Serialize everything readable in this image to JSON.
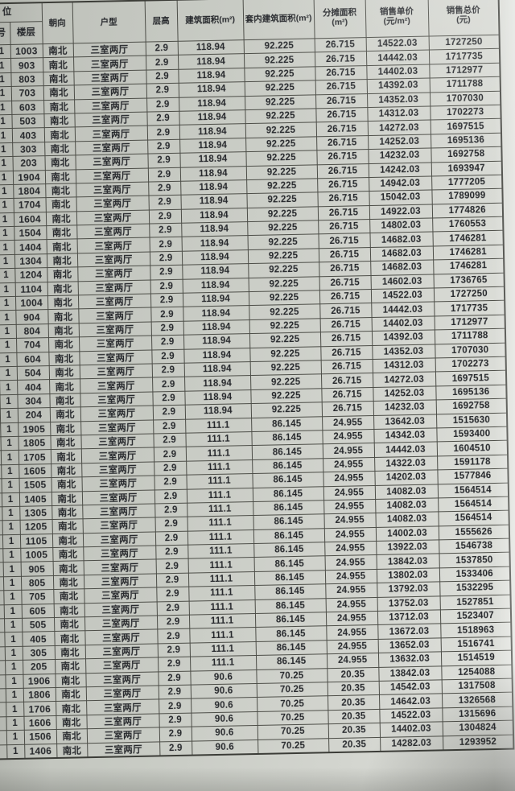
{
  "table": {
    "header": {
      "position_group": "位",
      "building_no": "",
      "unit_no": "号",
      "floor": "楼层",
      "orientation": "朝向",
      "unit_type": "户型",
      "floor_height": "层高",
      "build_area": "建筑面积(m²)",
      "inner_area": "套内建筑面积(m²)",
      "shared_area_l1": "分摊面积",
      "shared_area_l2": "(m²)",
      "unit_price_l1": "销售单价",
      "unit_price_l2": "(元/m²)",
      "total_price_l1": "销售总价",
      "total_price_l2": "(元)"
    },
    "col_keys": [
      "building",
      "unit",
      "floor",
      "orientation",
      "unit-type",
      "floor-height",
      "build-area",
      "inner-area",
      "shared-area",
      "unit-price",
      "total-price"
    ],
    "rows": [
      [
        "1",
        "1",
        "1003",
        "南北",
        "三室两厅",
        "2.9",
        "118.94",
        "92.225",
        "26.715",
        "14522.03",
        "1727250"
      ],
      [
        "1",
        "1",
        "903",
        "南北",
        "三室两厅",
        "2.9",
        "118.94",
        "92.225",
        "26.715",
        "14442.03",
        "1717735"
      ],
      [
        "1",
        "1",
        "803",
        "南北",
        "三室两厅",
        "2.9",
        "118.94",
        "92.225",
        "26.715",
        "14402.03",
        "1712977"
      ],
      [
        "1",
        "1",
        "703",
        "南北",
        "三室两厅",
        "2.9",
        "118.94",
        "92.225",
        "26.715",
        "14392.03",
        "1711788"
      ],
      [
        "1",
        "1",
        "603",
        "南北",
        "三室两厅",
        "2.9",
        "118.94",
        "92.225",
        "26.715",
        "14352.03",
        "1707030"
      ],
      [
        "1",
        "1",
        "503",
        "南北",
        "三室两厅",
        "2.9",
        "118.94",
        "92.225",
        "26.715",
        "14312.03",
        "1702273"
      ],
      [
        "1",
        "1",
        "403",
        "南北",
        "三室两厅",
        "2.9",
        "118.94",
        "92.225",
        "26.715",
        "14272.03",
        "1697515"
      ],
      [
        "1",
        "1",
        "303",
        "南北",
        "三室两厅",
        "2.9",
        "118.94",
        "92.225",
        "26.715",
        "14252.03",
        "1695136"
      ],
      [
        "1",
        "1",
        "203",
        "南北",
        "三室两厅",
        "2.9",
        "118.94",
        "92.225",
        "26.715",
        "14232.03",
        "1692758"
      ],
      [
        "1",
        "1",
        "1904",
        "南北",
        "三室两厅",
        "2.9",
        "118.94",
        "92.225",
        "26.715",
        "14242.03",
        "1693947"
      ],
      [
        "1",
        "1",
        "1804",
        "南北",
        "三室两厅",
        "2.9",
        "118.94",
        "92.225",
        "26.715",
        "14942.03",
        "1777205"
      ],
      [
        "1",
        "1",
        "1704",
        "南北",
        "三室两厅",
        "2.9",
        "118.94",
        "92.225",
        "26.715",
        "15042.03",
        "1789099"
      ],
      [
        "1",
        "1",
        "1604",
        "南北",
        "三室两厅",
        "2.9",
        "118.94",
        "92.225",
        "26.715",
        "14922.03",
        "1774826"
      ],
      [
        "1",
        "1",
        "1504",
        "南北",
        "三室两厅",
        "2.9",
        "118.94",
        "92.225",
        "26.715",
        "14802.03",
        "1760553"
      ],
      [
        "1",
        "1",
        "1404",
        "南北",
        "三室两厅",
        "2.9",
        "118.94",
        "92.225",
        "26.715",
        "14682.03",
        "1746281"
      ],
      [
        "1",
        "1",
        "1304",
        "南北",
        "三室两厅",
        "2.9",
        "118.94",
        "92.225",
        "26.715",
        "14682.03",
        "1746281"
      ],
      [
        "1",
        "1",
        "1204",
        "南北",
        "三室两厅",
        "2.9",
        "118.94",
        "92.225",
        "26.715",
        "14682.03",
        "1746281"
      ],
      [
        "1",
        "1",
        "1104",
        "南北",
        "三室两厅",
        "2.9",
        "118.94",
        "92.225",
        "26.715",
        "14602.03",
        "1736765"
      ],
      [
        "1",
        "1",
        "1004",
        "南北",
        "三室两厅",
        "2.9",
        "118.94",
        "92.225",
        "26.715",
        "14522.03",
        "1727250"
      ],
      [
        "1",
        "1",
        "904",
        "南北",
        "三室两厅",
        "2.9",
        "118.94",
        "92.225",
        "26.715",
        "14442.03",
        "1717735"
      ],
      [
        "1",
        "1",
        "804",
        "南北",
        "三室两厅",
        "2.9",
        "118.94",
        "92.225",
        "26.715",
        "14402.03",
        "1712977"
      ],
      [
        "1",
        "1",
        "704",
        "南北",
        "三室两厅",
        "2.9",
        "118.94",
        "92.225",
        "26.715",
        "14392.03",
        "1711788"
      ],
      [
        "1",
        "1",
        "604",
        "南北",
        "三室两厅",
        "2.9",
        "118.94",
        "92.225",
        "26.715",
        "14352.03",
        "1707030"
      ],
      [
        "1",
        "1",
        "504",
        "南北",
        "三室两厅",
        "2.9",
        "118.94",
        "92.225",
        "26.715",
        "14312.03",
        "1702273"
      ],
      [
        "1",
        "1",
        "404",
        "南北",
        "三室两厅",
        "2.9",
        "118.94",
        "92.225",
        "26.715",
        "14272.03",
        "1697515"
      ],
      [
        "1",
        "1",
        "304",
        "南北",
        "三室两厅",
        "2.9",
        "118.94",
        "92.225",
        "26.715",
        "14252.03",
        "1695136"
      ],
      [
        "1",
        "1",
        "204",
        "南北",
        "三室两厅",
        "2.9",
        "118.94",
        "92.225",
        "26.715",
        "14232.03",
        "1692758"
      ],
      [
        "1",
        "1",
        "1905",
        "南北",
        "三室两厅",
        "2.9",
        "111.1",
        "86.145",
        "24.955",
        "13642.03",
        "1515630"
      ],
      [
        "1",
        "1",
        "1805",
        "南北",
        "三室两厅",
        "2.9",
        "111.1",
        "86.145",
        "24.955",
        "14342.03",
        "1593400"
      ],
      [
        "1",
        "1",
        "1705",
        "南北",
        "三室两厅",
        "2.9",
        "111.1",
        "86.145",
        "24.955",
        "14442.03",
        "1604510"
      ],
      [
        "1",
        "1",
        "1605",
        "南北",
        "三室两厅",
        "2.9",
        "111.1",
        "86.145",
        "24.955",
        "14322.03",
        "1591178"
      ],
      [
        "1",
        "1",
        "1505",
        "南北",
        "三室两厅",
        "2.9",
        "111.1",
        "86.145",
        "24.955",
        "14202.03",
        "1577846"
      ],
      [
        "1",
        "1",
        "1405",
        "南北",
        "三室两厅",
        "2.9",
        "111.1",
        "86.145",
        "24.955",
        "14082.03",
        "1564514"
      ],
      [
        "1",
        "1",
        "1305",
        "南北",
        "三室两厅",
        "2.9",
        "111.1",
        "86.145",
        "24.955",
        "14082.03",
        "1564514"
      ],
      [
        "1",
        "1",
        "1205",
        "南北",
        "三室两厅",
        "2.9",
        "111.1",
        "86.145",
        "24.955",
        "14082.03",
        "1564514"
      ],
      [
        "1",
        "1",
        "1105",
        "南北",
        "三室两厅",
        "2.9",
        "111.1",
        "86.145",
        "24.955",
        "14002.03",
        "1555626"
      ],
      [
        "1",
        "1",
        "1005",
        "南北",
        "三室两厅",
        "2.9",
        "111.1",
        "86.145",
        "24.955",
        "13922.03",
        "1546738"
      ],
      [
        "1",
        "1",
        "905",
        "南北",
        "三室两厅",
        "2.9",
        "111.1",
        "86.145",
        "24.955",
        "13842.03",
        "1537850"
      ],
      [
        "1",
        "1",
        "805",
        "南北",
        "三室两厅",
        "2.9",
        "111.1",
        "86.145",
        "24.955",
        "13802.03",
        "1533406"
      ],
      [
        "1",
        "1",
        "705",
        "南北",
        "三室两厅",
        "2.9",
        "111.1",
        "86.145",
        "24.955",
        "13792.03",
        "1532295"
      ],
      [
        "1",
        "1",
        "605",
        "南北",
        "三室两厅",
        "2.9",
        "111.1",
        "86.145",
        "24.955",
        "13752.03",
        "1527851"
      ],
      [
        "1",
        "1",
        "505",
        "南北",
        "三室两厅",
        "2.9",
        "111.1",
        "86.145",
        "24.955",
        "13712.03",
        "1523407"
      ],
      [
        "1",
        "1",
        "405",
        "南北",
        "三室两厅",
        "2.9",
        "111.1",
        "86.145",
        "24.955",
        "13672.03",
        "1518963"
      ],
      [
        "1",
        "1",
        "305",
        "南北",
        "三室两厅",
        "2.9",
        "111.1",
        "86.145",
        "24.955",
        "13652.03",
        "1516741"
      ],
      [
        "1",
        "1",
        "205",
        "南北",
        "三室两厅",
        "2.9",
        "111.1",
        "86.145",
        "24.955",
        "13632.03",
        "1514519"
      ],
      [
        "1",
        "1",
        "1906",
        "南北",
        "三室两厅",
        "2.9",
        "90.6",
        "70.25",
        "20.35",
        "13842.03",
        "1254088"
      ],
      [
        "1",
        "1",
        "1806",
        "南北",
        "三室两厅",
        "2.9",
        "90.6",
        "70.25",
        "20.35",
        "14542.03",
        "1317508"
      ],
      [
        "1",
        "1",
        "1706",
        "南北",
        "三室两厅",
        "2.9",
        "90.6",
        "70.25",
        "20.35",
        "14642.03",
        "1326568"
      ],
      [
        "1",
        "1",
        "1606",
        "南北",
        "三室两厅",
        "2.9",
        "90.6",
        "70.25",
        "20.35",
        "14522.03",
        "1315696"
      ],
      [
        "1",
        "1",
        "1506",
        "南北",
        "三室两厅",
        "2.9",
        "90.6",
        "70.25",
        "20.35",
        "14402.03",
        "1304824"
      ],
      [
        "1",
        "1",
        "1406",
        "南北",
        "三室两厅",
        "2.9",
        "90.6",
        "70.25",
        "20.35",
        "14282.03",
        "1293952"
      ]
    ]
  }
}
